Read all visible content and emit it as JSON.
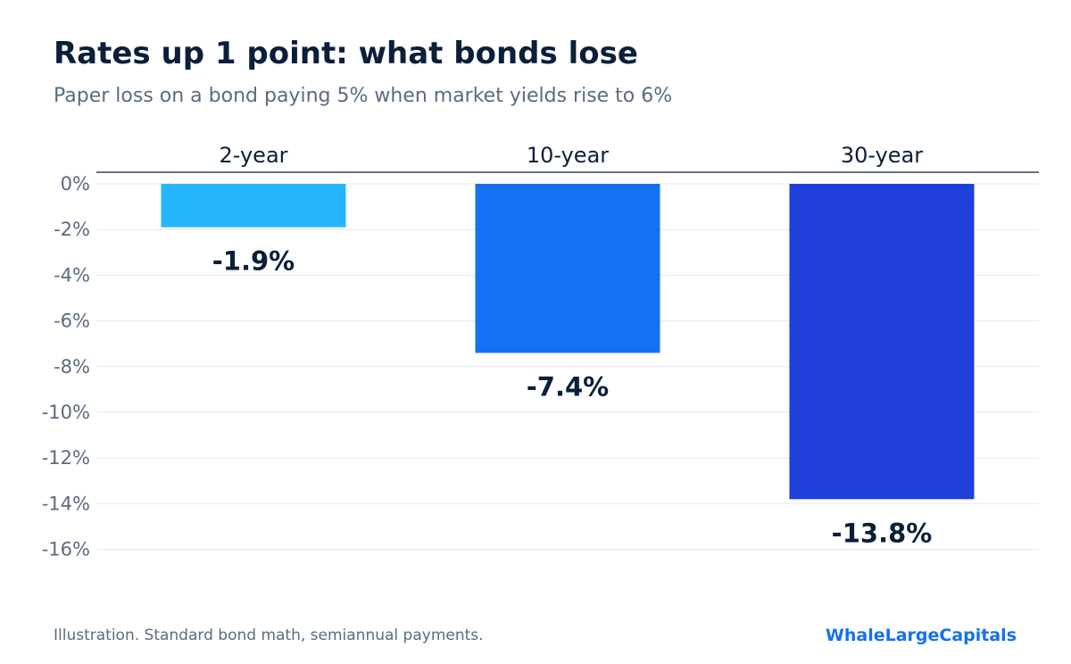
{
  "chart_data": {
    "type": "bar",
    "title": "Rates up 1 point: what bonds lose",
    "subtitle": "Paper loss on a bond paying 5% when market yields rise to 6%",
    "categories": [
      "2-year",
      "10-year",
      "30-year"
    ],
    "values": [
      -1.9,
      -7.4,
      -13.8
    ],
    "value_labels": [
      "-1.9%",
      "-7.4%",
      "-13.8%"
    ],
    "colors": [
      "#25b6fd",
      "#1570f2",
      "#1e3fd9"
    ],
    "ylim": [
      -16,
      0
    ],
    "yticks": [
      0,
      -2,
      -4,
      -6,
      -8,
      -10,
      -12,
      -14,
      -16
    ],
    "ytick_labels": [
      "0%",
      "-2%",
      "-4%",
      "-6%",
      "-8%",
      "-10%",
      "-12%",
      "-14%",
      "-16%"
    ],
    "xlabel": "",
    "ylabel": "",
    "grid": true,
    "category_labels_position": "top"
  },
  "footer": {
    "note": "Illustration. Standard bond math, semiannual payments.",
    "brand": "WhaleLargeCapitals"
  }
}
